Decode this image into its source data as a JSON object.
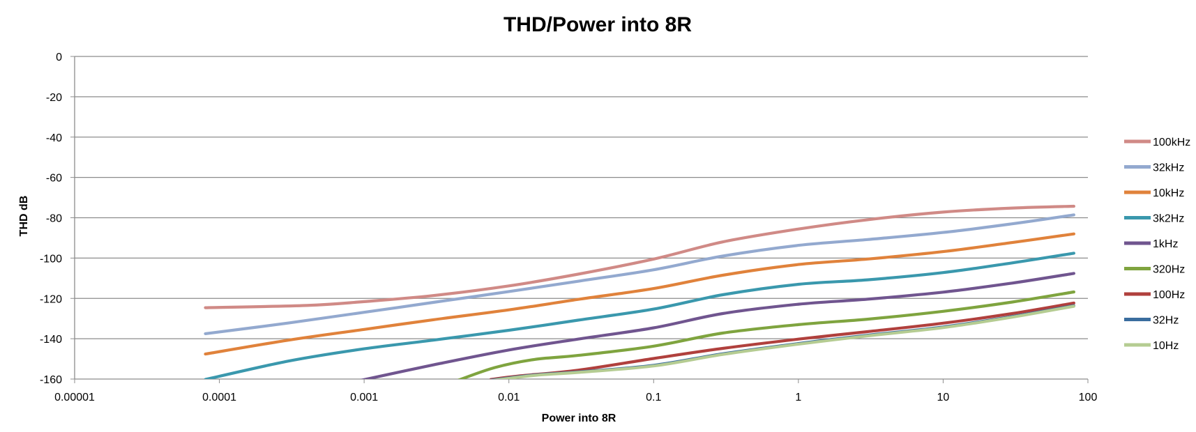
{
  "chart_data": {
    "type": "line",
    "title": "THD/Power into 8R",
    "xlabel": "Power into 8R",
    "ylabel": "THD dB",
    "xscale": "log",
    "xlim": [
      1e-05,
      100
    ],
    "ylim": [
      -160,
      0
    ],
    "x_ticks": [
      "0.00001",
      "0.0001",
      "0.001",
      "0.01",
      "0.1",
      "1",
      "10",
      "100"
    ],
    "y_ticks": [
      "0",
      "-20",
      "-40",
      "-60",
      "-80",
      "-100",
      "-120",
      "-140",
      "-160"
    ],
    "grid": "horizontal",
    "legend_position": "right",
    "series": [
      {
        "name": "100kHz",
        "color": "#d08a86",
        "points": [
          [
            8e-05,
            -124.6
          ],
          [
            0.0004,
            -123.5
          ],
          [
            0.001,
            -121.6
          ],
          [
            0.003,
            -118.6
          ],
          [
            0.01,
            -113.8
          ],
          [
            0.03,
            -108
          ],
          [
            0.1,
            -100.5
          ],
          [
            0.3,
            -92
          ],
          [
            1,
            -85.6
          ],
          [
            3,
            -81
          ],
          [
            10,
            -77.2
          ],
          [
            30,
            -75.2
          ],
          [
            80,
            -74.3
          ]
        ]
      },
      {
        "name": "32kHz",
        "color": "#93a9cf",
        "points": [
          [
            8e-05,
            -137.5
          ],
          [
            0.0003,
            -132.2
          ],
          [
            0.001,
            -126.9
          ],
          [
            0.003,
            -122
          ],
          [
            0.01,
            -116.6
          ],
          [
            0.03,
            -111.5
          ],
          [
            0.1,
            -105.8
          ],
          [
            0.3,
            -99
          ],
          [
            1,
            -93.7
          ],
          [
            3,
            -90.8
          ],
          [
            10,
            -87.3
          ],
          [
            30,
            -83
          ],
          [
            80,
            -78.6
          ]
        ]
      },
      {
        "name": "10kHz",
        "color": "#e0823b",
        "points": [
          [
            8e-05,
            -147.6
          ],
          [
            0.0003,
            -140.7
          ],
          [
            0.001,
            -135.4
          ],
          [
            0.003,
            -130.6
          ],
          [
            0.01,
            -125.7
          ],
          [
            0.03,
            -120.5
          ],
          [
            0.1,
            -115.1
          ],
          [
            0.3,
            -108.5
          ],
          [
            1,
            -103.2
          ],
          [
            3,
            -100.5
          ],
          [
            10,
            -96.8
          ],
          [
            30,
            -92.3
          ],
          [
            80,
            -88
          ]
        ]
      },
      {
        "name": "3k2Hz",
        "color": "#3a98ad",
        "points": [
          [
            8e-05,
            -160.2
          ],
          [
            0.0003,
            -151.1
          ],
          [
            0.001,
            -145
          ],
          [
            0.003,
            -140.7
          ],
          [
            0.01,
            -135.8
          ],
          [
            0.03,
            -130.8
          ],
          [
            0.1,
            -125.3
          ],
          [
            0.3,
            -118.2
          ],
          [
            1,
            -113
          ],
          [
            3,
            -110.8
          ],
          [
            10,
            -107.2
          ],
          [
            30,
            -102.4
          ],
          [
            80,
            -97.6
          ]
        ]
      },
      {
        "name": "1kHz",
        "color": "#70558f",
        "points": [
          [
            0.0009,
            -161
          ],
          [
            0.003,
            -153
          ],
          [
            0.01,
            -145.6
          ],
          [
            0.03,
            -140.2
          ],
          [
            0.1,
            -134.6
          ],
          [
            0.3,
            -127.5
          ],
          [
            1,
            -122.9
          ],
          [
            3,
            -120.4
          ],
          [
            10,
            -116.9
          ],
          [
            30,
            -112.4
          ],
          [
            80,
            -107.6
          ]
        ]
      },
      {
        "name": "320Hz",
        "color": "#7fa43f",
        "points": [
          [
            0.0045,
            -160.5
          ],
          [
            0.008,
            -154.3
          ],
          [
            0.015,
            -150.3
          ],
          [
            0.03,
            -148.3
          ],
          [
            0.1,
            -143.7
          ],
          [
            0.3,
            -137.2
          ],
          [
            1,
            -133
          ],
          [
            3,
            -130.3
          ],
          [
            10,
            -126.4
          ],
          [
            30,
            -121.8
          ],
          [
            80,
            -116.8
          ]
        ]
      },
      {
        "name": "100Hz",
        "color": "#b0403d",
        "points": [
          [
            0.0075,
            -160.2
          ],
          [
            0.012,
            -158.4
          ],
          [
            0.03,
            -155.6
          ],
          [
            0.1,
            -149.8
          ],
          [
            0.3,
            -144.8
          ],
          [
            1,
            -140.2
          ],
          [
            3,
            -136.5
          ],
          [
            10,
            -132.3
          ],
          [
            30,
            -127.5
          ],
          [
            80,
            -122.3
          ]
        ]
      },
      {
        "name": "32Hz",
        "color": "#3a6d9e",
        "points": [
          [
            0.0075,
            -160.6
          ],
          [
            0.015,
            -158
          ],
          [
            0.03,
            -156.5
          ],
          [
            0.1,
            -153.2
          ],
          [
            0.3,
            -147.5
          ],
          [
            1,
            -142.4
          ],
          [
            3,
            -138.3
          ],
          [
            10,
            -134.2
          ],
          [
            30,
            -129
          ],
          [
            80,
            -123.6
          ]
        ]
      },
      {
        "name": "10Hz",
        "color": "#b5cc92",
        "points": [
          [
            0.0075,
            -160.8
          ],
          [
            0.015,
            -158.2
          ],
          [
            0.03,
            -156.7
          ],
          [
            0.1,
            -153.5
          ],
          [
            0.3,
            -147.8
          ],
          [
            1,
            -142.7
          ],
          [
            3,
            -138.6
          ],
          [
            10,
            -134.5
          ],
          [
            30,
            -129.3
          ],
          [
            80,
            -123.9
          ]
        ]
      }
    ]
  }
}
